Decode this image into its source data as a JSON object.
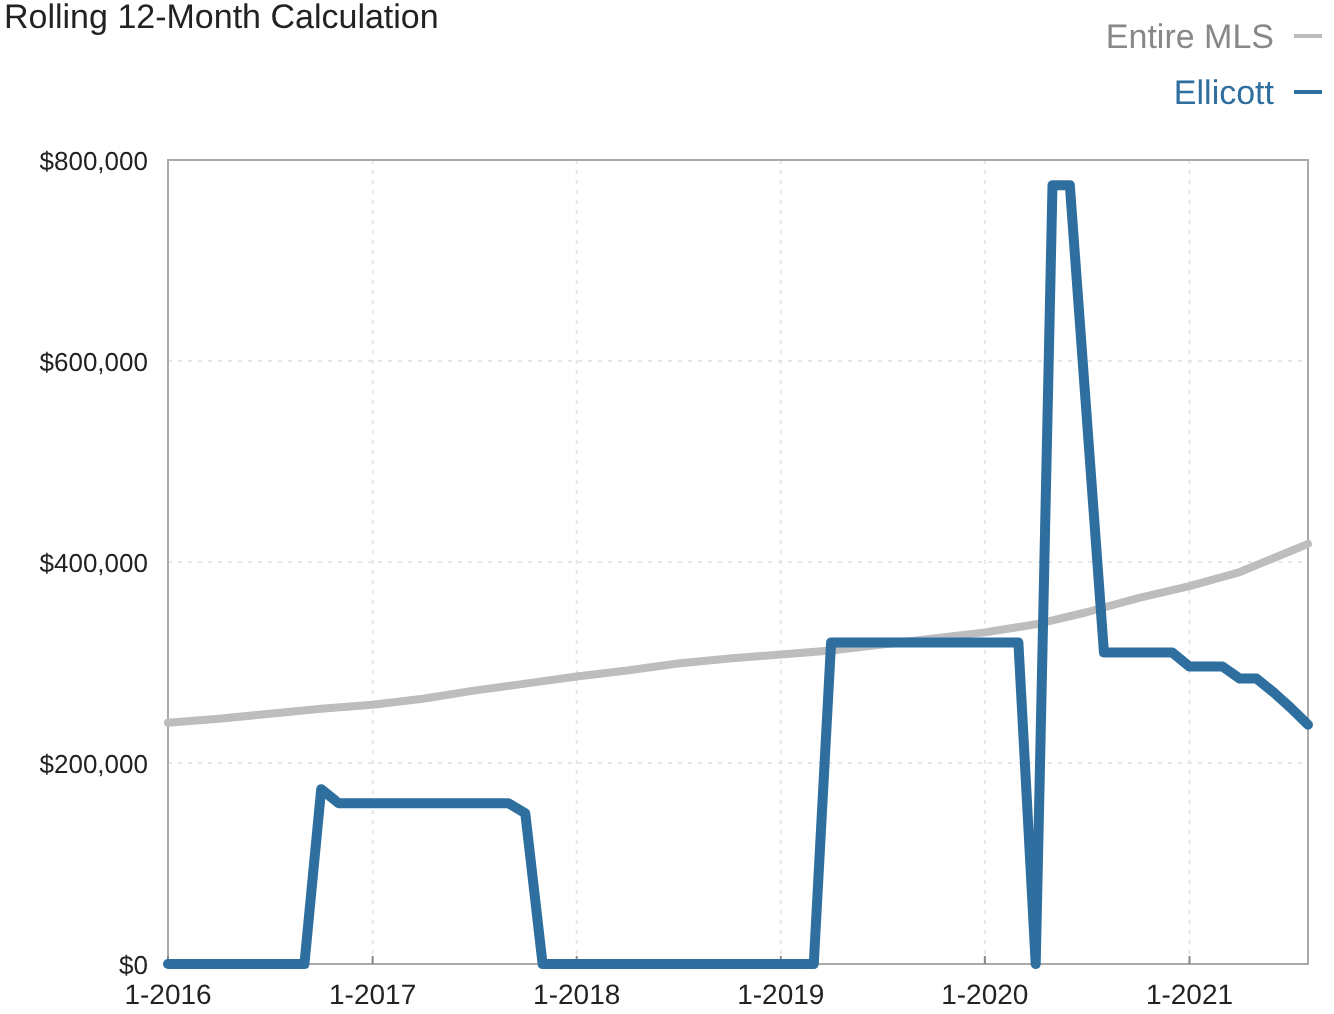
{
  "chart_data": {
    "type": "line",
    "title": "Rolling 12-Month Calculation",
    "legend": "top right",
    "grid": true,
    "line_style": "solid",
    "marker": "none",
    "xlim": [
      "2016-01",
      "2021-08"
    ],
    "xticks": [
      {
        "value": "2016-01",
        "label": "1-2016"
      },
      {
        "value": "2017-01",
        "label": "1-2017"
      },
      {
        "value": "2018-01",
        "label": "1-2018"
      },
      {
        "value": "2019-01",
        "label": "1-2019"
      },
      {
        "value": "2020-01",
        "label": "1-2020"
      },
      {
        "value": "2021-01",
        "label": "1-2021"
      }
    ],
    "ylim": [
      0,
      800000
    ],
    "yticks": [
      {
        "value": 0,
        "label": "$0"
      },
      {
        "value": 200000,
        "label": "$200,000"
      },
      {
        "value": 400000,
        "label": "$400,000"
      },
      {
        "value": 600000,
        "label": "$600,000"
      },
      {
        "value": 800000,
        "label": "$800,000"
      }
    ],
    "series": [
      {
        "name": "Entire MLS",
        "color": "#bdbdbd",
        "x": [
          "2016-01",
          "2016-04",
          "2016-07",
          "2016-10",
          "2017-01",
          "2017-04",
          "2017-07",
          "2017-10",
          "2018-01",
          "2018-04",
          "2018-07",
          "2018-10",
          "2019-01",
          "2019-04",
          "2019-07",
          "2019-10",
          "2020-01",
          "2020-04",
          "2020-07",
          "2020-10",
          "2021-01",
          "2021-04",
          "2021-06",
          "2021-08"
        ],
        "values": [
          240000,
          244000,
          249000,
          254000,
          258000,
          264000,
          272000,
          279000,
          286000,
          292000,
          299000,
          304000,
          308000,
          312000,
          318000,
          324000,
          330000,
          338000,
          350000,
          364000,
          376000,
          390000,
          404000,
          418000
        ]
      },
      {
        "name": "Ellicott",
        "color": "#2f6f9f",
        "x": [
          "2016-01",
          "2016-09",
          "2016-10",
          "2016-11",
          "2017-09",
          "2017-10",
          "2017-11",
          "2019-03",
          "2019-04",
          "2020-03",
          "2020-04",
          "2020-05",
          "2020-06",
          "2020-08",
          "2020-12",
          "2021-01",
          "2021-03",
          "2021-04",
          "2021-05",
          "2021-06",
          "2021-07",
          "2021-08"
        ],
        "values": [
          0,
          0,
          174000,
          160000,
          160000,
          150000,
          0,
          0,
          320000,
          320000,
          0,
          775000,
          775000,
          310000,
          310000,
          296000,
          296000,
          284000,
          284000,
          270000,
          255000,
          238000
        ]
      }
    ]
  }
}
